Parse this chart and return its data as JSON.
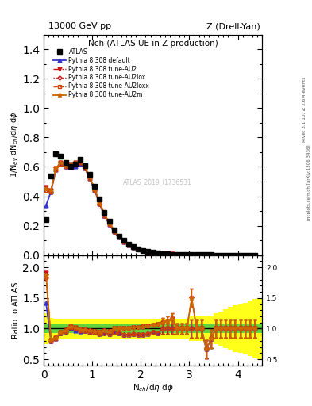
{
  "title_main": "Nch (ATLAS UE in Z production)",
  "top_left": "13000 GeV pp",
  "top_right": "Z (Drell-Yan)",
  "ylabel_main": "1/N$_{ev}$ dN$_{ch}$/d$\\eta$ d$\\phi$",
  "ylabel_ratio": "Ratio to ATLAS",
  "xlabel": "N$_{ch}$/d$\\eta$ d$\\phi$",
  "watermark": "ATLAS_2019_I1736531",
  "right_label1": "Rivet 3.1.10, ≥ 2.6M events",
  "right_label2": "mcplots.cern.ch [arXiv:1306.3436]",
  "atl_x": [
    0.05,
    0.15,
    0.25,
    0.35,
    0.45,
    0.55,
    0.65,
    0.75,
    0.85,
    0.95,
    1.05,
    1.15,
    1.25,
    1.35,
    1.45,
    1.55,
    1.65,
    1.75,
    1.85,
    1.95,
    2.05,
    2.15,
    2.25,
    2.35,
    2.45,
    2.55,
    2.65,
    2.75,
    2.85,
    2.95,
    3.05,
    3.15,
    3.25,
    3.35,
    3.45,
    3.55,
    3.65,
    3.75,
    3.85,
    3.95,
    4.05,
    4.15,
    4.25,
    4.35
  ],
  "atl_y": [
    0.24,
    0.54,
    0.69,
    0.67,
    0.63,
    0.6,
    0.62,
    0.65,
    0.61,
    0.55,
    0.47,
    0.38,
    0.29,
    0.23,
    0.17,
    0.13,
    0.1,
    0.075,
    0.056,
    0.043,
    0.032,
    0.024,
    0.018,
    0.014,
    0.01,
    0.008,
    0.006,
    0.005,
    0.004,
    0.003,
    0.002,
    0.002,
    0.002,
    0.0015,
    0.0012,
    0.001,
    0.001,
    0.001,
    0.001,
    0.001,
    0.001,
    0.001,
    0.001,
    0.001
  ],
  "mc_x": [
    0.05,
    0.15,
    0.25,
    0.35,
    0.45,
    0.55,
    0.65,
    0.75,
    0.85,
    0.95,
    1.05,
    1.15,
    1.25,
    1.35,
    1.45,
    1.55,
    1.65,
    1.75,
    1.85,
    1.95,
    2.05,
    2.15,
    2.25,
    2.35,
    2.45,
    2.55,
    2.65,
    2.75,
    2.85,
    2.95,
    3.05,
    3.15,
    3.25,
    3.35,
    3.45,
    3.55,
    3.65,
    3.75,
    3.85,
    3.95,
    4.05,
    4.15,
    4.25,
    4.35
  ],
  "def_y": [
    0.34,
    0.43,
    0.58,
    0.62,
    0.6,
    0.6,
    0.6,
    0.62,
    0.59,
    0.52,
    0.44,
    0.35,
    0.27,
    0.21,
    0.16,
    0.12,
    0.09,
    0.068,
    0.051,
    0.039,
    0.029,
    0.022,
    0.017,
    0.013,
    0.01,
    0.008,
    0.006,
    0.005,
    0.004,
    0.003,
    0.002,
    0.002,
    0.002,
    0.001,
    0.001,
    0.001,
    0.001,
    0.001,
    0.001,
    0.001,
    0.001,
    0.001,
    0.001,
    0.001
  ],
  "au2_y": [
    0.46,
    0.44,
    0.59,
    0.63,
    0.62,
    0.62,
    0.63,
    0.64,
    0.6,
    0.53,
    0.45,
    0.36,
    0.28,
    0.22,
    0.17,
    0.13,
    0.1,
    0.075,
    0.057,
    0.044,
    0.033,
    0.025,
    0.019,
    0.015,
    0.011,
    0.009,
    0.007,
    0.005,
    0.004,
    0.003,
    0.003,
    0.002,
    0.002,
    0.001,
    0.001,
    0.001,
    0.001,
    0.001,
    0.001,
    0.001,
    0.001,
    0.001,
    0.001,
    0.001
  ],
  "au2lox_y": [
    0.44,
    0.43,
    0.58,
    0.62,
    0.6,
    0.61,
    0.62,
    0.63,
    0.59,
    0.52,
    0.44,
    0.35,
    0.27,
    0.21,
    0.16,
    0.12,
    0.09,
    0.068,
    0.051,
    0.039,
    0.029,
    0.022,
    0.017,
    0.013,
    0.01,
    0.008,
    0.006,
    0.005,
    0.004,
    0.003,
    0.002,
    0.002,
    0.002,
    0.001,
    0.001,
    0.001,
    0.001,
    0.001,
    0.001,
    0.001,
    0.001,
    0.001,
    0.001,
    0.001
  ],
  "au2loxx_y": [
    0.44,
    0.43,
    0.58,
    0.62,
    0.6,
    0.61,
    0.62,
    0.63,
    0.59,
    0.52,
    0.44,
    0.35,
    0.27,
    0.21,
    0.16,
    0.12,
    0.09,
    0.068,
    0.051,
    0.039,
    0.029,
    0.022,
    0.017,
    0.013,
    0.01,
    0.008,
    0.006,
    0.005,
    0.004,
    0.003,
    0.002,
    0.002,
    0.002,
    0.001,
    0.001,
    0.001,
    0.001,
    0.001,
    0.001,
    0.001,
    0.001,
    0.001,
    0.001,
    0.001
  ],
  "au2m_y": [
    0.45,
    0.44,
    0.59,
    0.63,
    0.61,
    0.62,
    0.63,
    0.64,
    0.6,
    0.53,
    0.45,
    0.36,
    0.28,
    0.22,
    0.17,
    0.13,
    0.1,
    0.075,
    0.057,
    0.044,
    0.033,
    0.025,
    0.019,
    0.015,
    0.011,
    0.009,
    0.007,
    0.005,
    0.004,
    0.003,
    0.003,
    0.002,
    0.002,
    0.001,
    0.001,
    0.001,
    0.001,
    0.001,
    0.001,
    0.001,
    0.001,
    0.001,
    0.001,
    0.001
  ],
  "band_x_edges": [
    0.0,
    0.1,
    0.2,
    0.3,
    0.4,
    0.5,
    0.6,
    0.7,
    0.8,
    0.9,
    1.0,
    1.1,
    1.2,
    1.3,
    1.4,
    1.5,
    1.6,
    1.7,
    1.8,
    1.9,
    2.0,
    2.1,
    2.2,
    2.3,
    2.4,
    2.5,
    2.6,
    2.7,
    2.8,
    2.9,
    3.0,
    3.1,
    3.2,
    3.3,
    3.4,
    3.5,
    3.6,
    3.7,
    3.8,
    3.9,
    4.0,
    4.1,
    4.2,
    4.3,
    4.4,
    4.5
  ],
  "band_green_lo": [
    0.93,
    0.93,
    0.93,
    0.93,
    0.93,
    0.93,
    0.93,
    0.93,
    0.93,
    0.93,
    0.93,
    0.93,
    0.93,
    0.93,
    0.93,
    0.93,
    0.93,
    0.93,
    0.93,
    0.93,
    0.93,
    0.93,
    0.93,
    0.93,
    0.93,
    0.93,
    0.93,
    0.93,
    0.93,
    0.93,
    0.93,
    0.93,
    0.93,
    0.93,
    0.93,
    0.93,
    0.93,
    0.93,
    0.93,
    0.93,
    0.93,
    0.93,
    0.93,
    0.93,
    0.93
  ],
  "band_green_hi": [
    1.07,
    1.07,
    1.07,
    1.07,
    1.07,
    1.07,
    1.07,
    1.07,
    1.07,
    1.07,
    1.07,
    1.07,
    1.07,
    1.07,
    1.07,
    1.07,
    1.07,
    1.07,
    1.07,
    1.07,
    1.07,
    1.07,
    1.07,
    1.07,
    1.07,
    1.07,
    1.07,
    1.07,
    1.07,
    1.07,
    1.07,
    1.07,
    1.07,
    1.07,
    1.07,
    1.07,
    1.07,
    1.07,
    1.07,
    1.07,
    1.07,
    1.07,
    1.07,
    1.07,
    1.07
  ],
  "band_yellow_lo": [
    0.75,
    0.82,
    0.84,
    0.84,
    0.84,
    0.84,
    0.84,
    0.84,
    0.84,
    0.84,
    0.84,
    0.84,
    0.84,
    0.84,
    0.84,
    0.84,
    0.84,
    0.84,
    0.84,
    0.84,
    0.84,
    0.84,
    0.84,
    0.84,
    0.84,
    0.84,
    0.84,
    0.84,
    0.84,
    0.84,
    0.8,
    0.8,
    0.8,
    0.8,
    0.8,
    0.75,
    0.72,
    0.68,
    0.65,
    0.62,
    0.6,
    0.58,
    0.55,
    0.52,
    0.5
  ],
  "band_yellow_hi": [
    1.25,
    1.18,
    1.16,
    1.16,
    1.16,
    1.16,
    1.16,
    1.16,
    1.16,
    1.16,
    1.16,
    1.16,
    1.16,
    1.16,
    1.16,
    1.16,
    1.16,
    1.16,
    1.16,
    1.16,
    1.16,
    1.16,
    1.16,
    1.16,
    1.16,
    1.16,
    1.16,
    1.16,
    1.16,
    1.16,
    1.2,
    1.2,
    1.2,
    1.2,
    1.2,
    1.25,
    1.28,
    1.32,
    1.35,
    1.38,
    1.4,
    1.42,
    1.45,
    1.48,
    1.5
  ],
  "xlim": [
    0.0,
    4.5
  ],
  "ylim_main": [
    0.0,
    1.5
  ],
  "ylim_ratio": [
    0.4,
    2.2
  ],
  "color_default": "#3333cc",
  "color_au2": "#cc1111",
  "color_au2lox": "#cc1111",
  "color_au2loxx": "#cc4400",
  "color_au2m": "#cc6600"
}
